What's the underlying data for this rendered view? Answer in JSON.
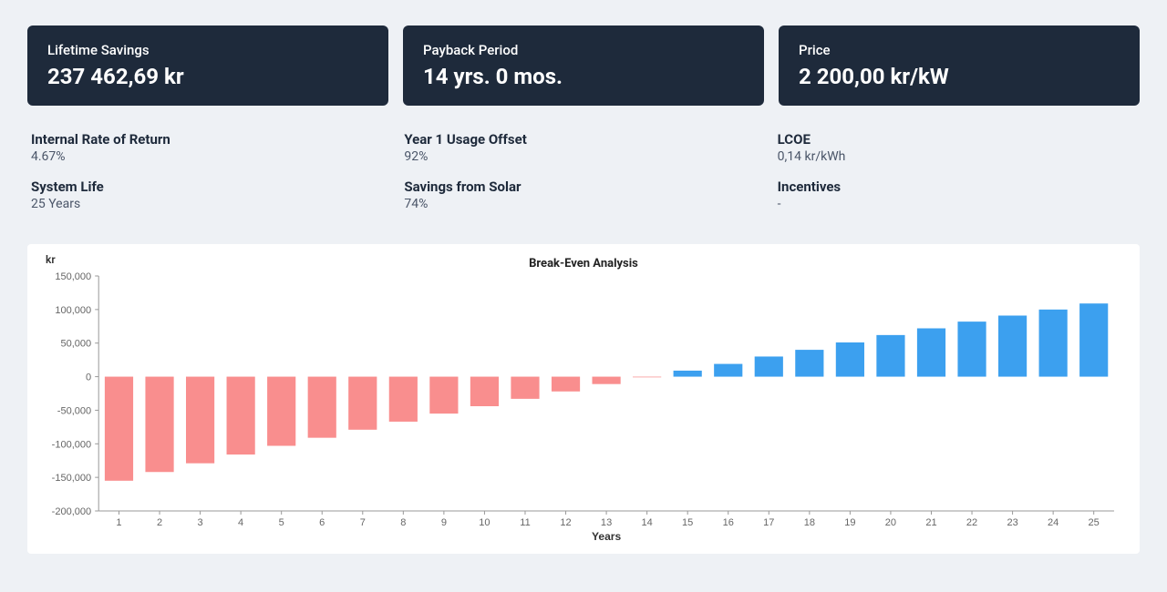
{
  "cards": [
    {
      "label": "Lifetime Savings",
      "value": "237 462,69 kr"
    },
    {
      "label": "Payback Period",
      "value": "14 yrs. 0 mos."
    },
    {
      "label": "Price",
      "value": "2 200,00 kr/kW"
    }
  ],
  "metrics": {
    "col1": [
      {
        "label": "Internal Rate of Return",
        "value": "4.67%"
      },
      {
        "label": "System Life",
        "value": "25 Years"
      }
    ],
    "col2": [
      {
        "label": "Year 1 Usage Offset",
        "value": "92%"
      },
      {
        "label": "Savings from Solar",
        "value": "74%"
      }
    ],
    "col3": [
      {
        "label": "LCOE",
        "value": "0,14 kr/kWh"
      },
      {
        "label": "Incentives",
        "value": "-"
      }
    ]
  },
  "chart": {
    "type": "bar",
    "title": "Break-Even Analysis",
    "unit_label": "kr",
    "x_label": "Years",
    "categories": [
      1,
      2,
      3,
      4,
      5,
      6,
      7,
      8,
      9,
      10,
      11,
      12,
      13,
      14,
      15,
      16,
      17,
      18,
      19,
      20,
      21,
      22,
      23,
      24,
      25
    ],
    "values": [
      -155000,
      -142000,
      -129000,
      -116000,
      -103000,
      -91000,
      -79000,
      -67000,
      -55000,
      -44000,
      -33000,
      -22000,
      -11000,
      -1000,
      9000,
      19000,
      30000,
      40000,
      51000,
      62000,
      72000,
      82000,
      91000,
      100000,
      109000
    ],
    "ylim": [
      -200000,
      150000
    ],
    "ytick_step": 50000,
    "ytick_labels": [
      "-200,000",
      "-150,000",
      "-100,000",
      "-50,000",
      "0",
      "50,000",
      "100,000",
      "150,000"
    ],
    "positive_color": "#3ca0ef",
    "negative_color": "#f98e8e",
    "axis_color": "#999999",
    "tick_font_color": "#666666",
    "tick_font_size": 11,
    "title_font_size": 13,
    "bar_gap_ratio": 0.3,
    "background_color": "#ffffff"
  }
}
